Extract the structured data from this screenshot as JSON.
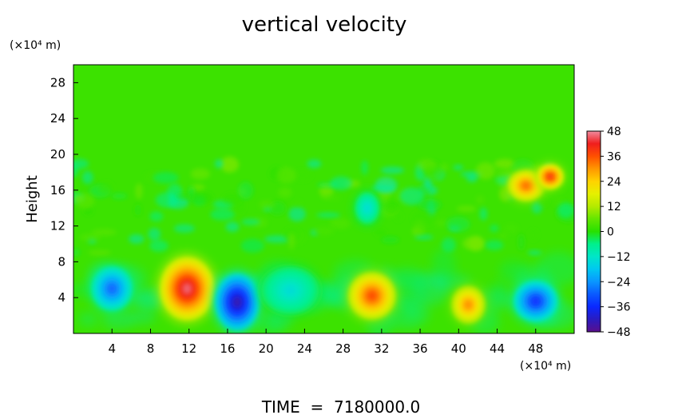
{
  "chart_data": {
    "type": "heatmap",
    "title": "vertical velocity",
    "ylabel": "Height",
    "y_unit": "(×10⁴ m)",
    "x_unit": "(×10⁴ m)",
    "footer": "TIME  =  7180000.0",
    "xlim": [
      0,
      52
    ],
    "ylim": [
      0,
      30
    ],
    "x_ticks": [
      4,
      8,
      12,
      16,
      20,
      24,
      28,
      32,
      36,
      40,
      44,
      48
    ],
    "y_ticks": [
      4,
      8,
      12,
      16,
      20,
      24,
      28
    ],
    "grid": false,
    "background_value": 2,
    "colorbar": {
      "min": -48,
      "max": 48,
      "ticks": [
        48,
        36,
        24,
        12,
        0,
        -12,
        -24,
        -36,
        -48
      ],
      "tick_labels": [
        "48",
        "36",
        "24",
        "12",
        "0",
        "−12",
        "−24",
        "−36",
        "−48"
      ],
      "position": "right"
    },
    "features": [
      {
        "x": 11.8,
        "y": 5.0,
        "rx": 3.2,
        "ry": 4.0,
        "value": 46
      },
      {
        "x": 31.0,
        "y": 4.2,
        "rx": 2.8,
        "ry": 3.0,
        "value": 37
      },
      {
        "x": 41.0,
        "y": 3.2,
        "rx": 2.0,
        "ry": 2.4,
        "value": 31
      },
      {
        "x": 4.0,
        "y": 5.0,
        "rx": 2.4,
        "ry": 2.8,
        "value": -29
      },
      {
        "x": 17.0,
        "y": 3.5,
        "rx": 2.6,
        "ry": 3.6,
        "value": -44
      },
      {
        "x": 48.0,
        "y": 3.6,
        "rx": 2.6,
        "ry": 2.6,
        "value": -35
      },
      {
        "x": 47.0,
        "y": 16.5,
        "rx": 2.2,
        "ry": 2.0,
        "value": 34
      },
      {
        "x": 49.5,
        "y": 17.5,
        "rx": 1.6,
        "ry": 1.6,
        "value": 40
      },
      {
        "x": 30.5,
        "y": 14.0,
        "rx": 1.4,
        "ry": 2.0,
        "value": -14
      },
      {
        "x": 22.5,
        "y": 4.8,
        "rx": 3.4,
        "ry": 3.0,
        "value": -14
      }
    ]
  }
}
